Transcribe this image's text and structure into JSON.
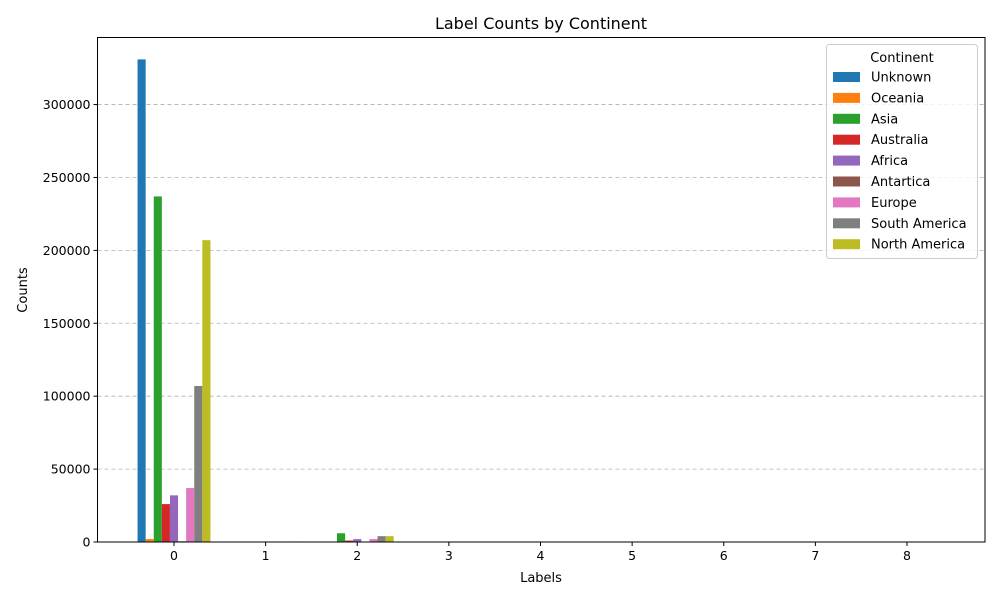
{
  "chart_data": {
    "type": "bar",
    "title": "Label Counts by Continent",
    "xlabel": "Labels",
    "ylabel": "Counts",
    "categories": [
      "0",
      "1",
      "2",
      "3",
      "4",
      "5",
      "6",
      "7",
      "8"
    ],
    "ylim": [
      0,
      346000
    ],
    "yticks": [
      0,
      50000,
      100000,
      150000,
      200000,
      250000,
      300000
    ],
    "ytick_labels": [
      "0",
      "50000",
      "100000",
      "150000",
      "200000",
      "250000",
      "300000"
    ],
    "grid": "y-dashed",
    "legend": {
      "title": "Continent",
      "position": "top-right"
    },
    "series": [
      {
        "name": "Unknown",
        "color": "#1f77b4",
        "values": [
          331000,
          0,
          0,
          0,
          0,
          0,
          0,
          0,
          0
        ]
      },
      {
        "name": "Oceania",
        "color": "#ff7f0e",
        "values": [
          2000,
          0,
          300,
          0,
          0,
          0,
          0,
          0,
          0
        ]
      },
      {
        "name": "Asia",
        "color": "#2ca02c",
        "values": [
          237000,
          0,
          6000,
          0,
          0,
          0,
          0,
          0,
          0
        ]
      },
      {
        "name": "Australia",
        "color": "#d62728",
        "values": [
          26000,
          0,
          1000,
          0,
          0,
          0,
          0,
          0,
          0
        ]
      },
      {
        "name": "Africa",
        "color": "#9467bd",
        "values": [
          32000,
          0,
          2000,
          0,
          0,
          0,
          0,
          0,
          0
        ]
      },
      {
        "name": "Antartica",
        "color": "#8c564b",
        "values": [
          500,
          0,
          200,
          0,
          0,
          0,
          0,
          0,
          0
        ]
      },
      {
        "name": "Europe",
        "color": "#e377c2",
        "values": [
          37000,
          0,
          2000,
          0,
          0,
          0,
          0,
          0,
          0
        ]
      },
      {
        "name": "South America",
        "color": "#7f7f7f",
        "values": [
          107000,
          0,
          4000,
          0,
          0,
          0,
          0,
          0,
          0
        ]
      },
      {
        "name": "North America",
        "color": "#bcbd22",
        "values": [
          207000,
          400,
          4000,
          300,
          0,
          300,
          0,
          300,
          0
        ]
      }
    ]
  }
}
